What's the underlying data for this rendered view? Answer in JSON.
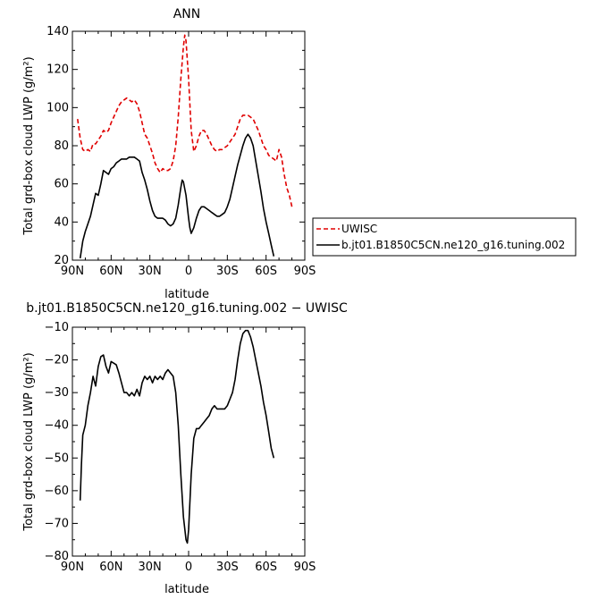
{
  "chart_data": [
    {
      "type": "line",
      "title": "ANN",
      "xlabel": "latitude",
      "ylabel": "Total grd-box cloud LWP (g/m²)",
      "xlim": [
        90,
        -90
      ],
      "ylim": [
        20,
        140
      ],
      "x_ticks": [
        90,
        60,
        30,
        0,
        -30,
        -60,
        -90
      ],
      "x_tick_labels": [
        "90N",
        "60N",
        "30N",
        "0",
        "30S",
        "60S",
        "90S"
      ],
      "y_ticks": [
        20,
        40,
        60,
        80,
        100,
        120,
        140
      ],
      "y_tick_labels": [
        "20",
        "40",
        "60",
        "80",
        "100",
        "120",
        "140"
      ],
      "legend": "right",
      "series": [
        {
          "name": "UWISC",
          "color": "#e00000",
          "dash": true,
          "points": [
            [
              86,
              94
            ],
            [
              84,
              84
            ],
            [
              82,
              78
            ],
            [
              80,
              77
            ],
            [
              78,
              78
            ],
            [
              76,
              77
            ],
            [
              74,
              81
            ],
            [
              72,
              81
            ],
            [
              70,
              83
            ],
            [
              68,
              85
            ],
            [
              66,
              88
            ],
            [
              64,
              87
            ],
            [
              62,
              88
            ],
            [
              60,
              92
            ],
            [
              58,
              95
            ],
            [
              56,
              98
            ],
            [
              54,
              101
            ],
            [
              52,
              103
            ],
            [
              50,
              104
            ],
            [
              48,
              105
            ],
            [
              46,
              104
            ],
            [
              44,
              103
            ],
            [
              42,
              104
            ],
            [
              40,
              102
            ],
            [
              38,
              98
            ],
            [
              36,
              92
            ],
            [
              34,
              86
            ],
            [
              32,
              84
            ],
            [
              30,
              80
            ],
            [
              28,
              76
            ],
            [
              26,
              71
            ],
            [
              24,
              68
            ],
            [
              22,
              66
            ],
            [
              20,
              68
            ],
            [
              18,
              67
            ],
            [
              16,
              67
            ],
            [
              14,
              68
            ],
            [
              12,
              72
            ],
            [
              10,
              80
            ],
            [
              8,
              95
            ],
            [
              6,
              115
            ],
            [
              4,
              132
            ],
            [
              3,
              138
            ],
            [
              2,
              135
            ],
            [
              0,
              115
            ],
            [
              -2,
              88
            ],
            [
              -4,
              77
            ],
            [
              -6,
              80
            ],
            [
              -8,
              85
            ],
            [
              -10,
              88
            ],
            [
              -12,
              88
            ],
            [
              -14,
              86
            ],
            [
              -16,
              83
            ],
            [
              -18,
              80
            ],
            [
              -20,
              78
            ],
            [
              -22,
              77
            ],
            [
              -24,
              78
            ],
            [
              -26,
              78
            ],
            [
              -28,
              79
            ],
            [
              -30,
              80
            ],
            [
              -32,
              82
            ],
            [
              -34,
              84
            ],
            [
              -36,
              86
            ],
            [
              -38,
              90
            ],
            [
              -40,
              94
            ],
            [
              -42,
              96
            ],
            [
              -44,
              96
            ],
            [
              -46,
              96
            ],
            [
              -48,
              95
            ],
            [
              -50,
              94
            ],
            [
              -52,
              91
            ],
            [
              -54,
              88
            ],
            [
              -56,
              84
            ],
            [
              -58,
              80
            ],
            [
              -60,
              78
            ],
            [
              -62,
              75
            ],
            [
              -64,
              74
            ],
            [
              -66,
              73
            ],
            [
              -68,
              72
            ],
            [
              -70,
              78
            ],
            [
              -72,
              74
            ],
            [
              -74,
              65
            ],
            [
              -76,
              58
            ],
            [
              -78,
              54
            ],
            [
              -80,
              48
            ]
          ]
        },
        {
          "name": "b.jt01.B1850C5CN.ne120_g16.tuning.002",
          "color": "#000000",
          "dash": false,
          "points": [
            [
              84,
              21
            ],
            [
              82,
              30
            ],
            [
              80,
              35
            ],
            [
              78,
              39
            ],
            [
              76,
              43
            ],
            [
              74,
              49
            ],
            [
              72,
              55
            ],
            [
              70,
              54
            ],
            [
              68,
              60
            ],
            [
              66,
              67
            ],
            [
              64,
              66
            ],
            [
              62,
              65
            ],
            [
              60,
              68
            ],
            [
              58,
              69
            ],
            [
              56,
              71
            ],
            [
              54,
              72
            ],
            [
              52,
              73
            ],
            [
              50,
              73
            ],
            [
              48,
              73
            ],
            [
              46,
              74
            ],
            [
              44,
              74
            ],
            [
              42,
              74
            ],
            [
              40,
              73
            ],
            [
              38,
              72
            ],
            [
              36,
              66
            ],
            [
              34,
              62
            ],
            [
              32,
              57
            ],
            [
              30,
              51
            ],
            [
              28,
              46
            ],
            [
              26,
              43
            ],
            [
              24,
              42
            ],
            [
              22,
              42
            ],
            [
              20,
              42
            ],
            [
              18,
              41
            ],
            [
              16,
              39
            ],
            [
              14,
              38
            ],
            [
              12,
              39
            ],
            [
              10,
              42
            ],
            [
              8,
              49
            ],
            [
              6,
              58
            ],
            [
              5,
              62
            ],
            [
              4,
              61
            ],
            [
              2,
              54
            ],
            [
              0,
              42
            ],
            [
              -1,
              37
            ],
            [
              -2,
              34
            ],
            [
              -4,
              37
            ],
            [
              -6,
              42
            ],
            [
              -8,
              46
            ],
            [
              -10,
              48
            ],
            [
              -12,
              48
            ],
            [
              -14,
              47
            ],
            [
              -16,
              46
            ],
            [
              -18,
              45
            ],
            [
              -20,
              44
            ],
            [
              -22,
              43
            ],
            [
              -24,
              43
            ],
            [
              -26,
              44
            ],
            [
              -28,
              45
            ],
            [
              -30,
              48
            ],
            [
              -32,
              52
            ],
            [
              -34,
              58
            ],
            [
              -36,
              64
            ],
            [
              -38,
              70
            ],
            [
              -40,
              75
            ],
            [
              -42,
              80
            ],
            [
              -44,
              84
            ],
            [
              -46,
              86
            ],
            [
              -48,
              84
            ],
            [
              -50,
              80
            ],
            [
              -52,
              72
            ],
            [
              -54,
              64
            ],
            [
              -56,
              56
            ],
            [
              -58,
              47
            ],
            [
              -60,
              40
            ],
            [
              -62,
              34
            ],
            [
              -64,
              28
            ],
            [
              -66,
              22
            ]
          ]
        }
      ]
    },
    {
      "type": "line",
      "title": "b.jt01.B1850C5CN.ne120_g16.tuning.002 − UWISC",
      "xlabel": "latitude",
      "ylabel": "Total grd-box cloud LWP (g/m²)",
      "xlim": [
        90,
        -90
      ],
      "ylim": [
        -80,
        -10
      ],
      "x_ticks": [
        90,
        60,
        30,
        0,
        -30,
        -60,
        -90
      ],
      "x_tick_labels": [
        "90N",
        "60N",
        "30N",
        "0",
        "30S",
        "60S",
        "90S"
      ],
      "y_ticks": [
        -80,
        -70,
        -60,
        -50,
        -40,
        -30,
        -20,
        -10
      ],
      "y_tick_labels": [
        "−80",
        "−70",
        "−60",
        "−50",
        "−40",
        "−30",
        "−20",
        "−10"
      ],
      "series": [
        {
          "color": "#000000",
          "dash": false,
          "points": [
            [
              84,
              -63
            ],
            [
              83,
              -52
            ],
            [
              82,
              -43
            ],
            [
              80,
              -40
            ],
            [
              78,
              -34
            ],
            [
              76,
              -30
            ],
            [
              74,
              -25
            ],
            [
              72,
              -28
            ],
            [
              70,
              -22
            ],
            [
              68,
              -19
            ],
            [
              66,
              -18.5
            ],
            [
              64,
              -22
            ],
            [
              62,
              -24
            ],
            [
              60,
              -20.5
            ],
            [
              58,
              -21
            ],
            [
              56,
              -21.5
            ],
            [
              54,
              -24
            ],
            [
              52,
              -27
            ],
            [
              50,
              -30
            ],
            [
              48,
              -30
            ],
            [
              46,
              -31
            ],
            [
              44,
              -30
            ],
            [
              42,
              -31
            ],
            [
              40,
              -29
            ],
            [
              38,
              -31
            ],
            [
              36,
              -27
            ],
            [
              34,
              -25
            ],
            [
              32,
              -26
            ],
            [
              30,
              -25
            ],
            [
              28,
              -27
            ],
            [
              26,
              -25
            ],
            [
              24,
              -26
            ],
            [
              22,
              -25
            ],
            [
              20,
              -26
            ],
            [
              18,
              -24
            ],
            [
              16,
              -23
            ],
            [
              14,
              -24
            ],
            [
              12,
              -25
            ],
            [
              10,
              -30
            ],
            [
              8,
              -40
            ],
            [
              6,
              -55
            ],
            [
              4,
              -68
            ],
            [
              2,
              -75
            ],
            [
              1,
              -76
            ],
            [
              0,
              -72
            ],
            [
              -2,
              -55
            ],
            [
              -4,
              -44
            ],
            [
              -6,
              -41
            ],
            [
              -8,
              -41
            ],
            [
              -10,
              -40
            ],
            [
              -12,
              -39
            ],
            [
              -14,
              -38
            ],
            [
              -16,
              -37
            ],
            [
              -18,
              -35
            ],
            [
              -20,
              -34
            ],
            [
              -22,
              -35
            ],
            [
              -24,
              -35
            ],
            [
              -26,
              -35
            ],
            [
              -28,
              -35
            ],
            [
              -30,
              -34
            ],
            [
              -32,
              -32
            ],
            [
              -34,
              -30
            ],
            [
              -36,
              -26
            ],
            [
              -38,
              -20
            ],
            [
              -40,
              -15
            ],
            [
              -42,
              -12
            ],
            [
              -44,
              -11
            ],
            [
              -46,
              -11
            ],
            [
              -48,
              -13
            ],
            [
              -50,
              -16
            ],
            [
              -52,
              -20
            ],
            [
              -54,
              -24
            ],
            [
              -56,
              -28
            ],
            [
              -58,
              -33
            ],
            [
              -60,
              -37
            ],
            [
              -62,
              -42
            ],
            [
              -64,
              -47
            ],
            [
              -66,
              -50
            ]
          ]
        }
      ]
    }
  ]
}
